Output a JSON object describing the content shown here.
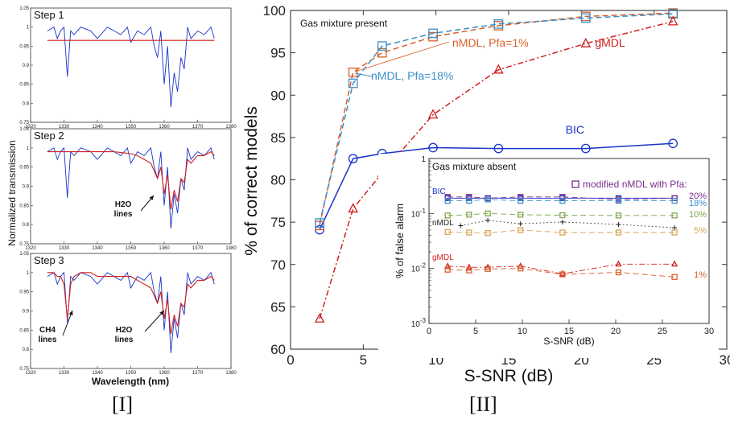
{
  "captions": {
    "left": "[I]",
    "right": "[II]"
  },
  "colors": {
    "blue": "#1a33c9",
    "red": "#d11f1f",
    "orange": "#d9602c",
    "teal": "#3a8fc7",
    "green": "#7fa84a",
    "tan": "#d9a35a",
    "purple": "#7a2d8f",
    "black": "#222222"
  },
  "chart_data": [
    {
      "type": "line",
      "panel": "[I]",
      "ylabel": "Normalized transmission",
      "xlabel": "Wavelength (nm)",
      "subplots": [
        {
          "title": "Step 1",
          "xlim": [
            1320,
            1380
          ],
          "ylim": [
            0.75,
            1.05
          ],
          "xticks": [
            "1320",
            "1330",
            "1340",
            "1350",
            "1360",
            "1370",
            "1380"
          ],
          "yticks": [
            "0.75",
            "0.8",
            "0.85",
            "0.9",
            "0.95",
            "1",
            "1.05"
          ],
          "annotations": [],
          "series": [
            {
              "color": "blue",
              "x": [
                1325,
                1327,
                1328,
                1329,
                1330,
                1331,
                1332,
                1333,
                1335,
                1338,
                1340,
                1343,
                1345,
                1347,
                1349,
                1350,
                1352,
                1354,
                1356,
                1357,
                1358,
                1359,
                1360,
                1361,
                1362,
                1363,
                1364,
                1365,
                1366,
                1367,
                1368,
                1370,
                1372,
                1374,
                1375
              ],
              "y": [
                0.99,
                1.0,
                0.97,
                0.99,
                1.0,
                0.87,
                0.99,
                0.98,
                1.0,
                0.99,
                0.97,
                1.0,
                0.99,
                0.98,
                1.0,
                0.96,
                0.99,
                0.98,
                1.0,
                0.95,
                0.92,
                0.99,
                0.85,
                0.95,
                0.79,
                0.88,
                0.83,
                0.92,
                0.89,
                1.0,
                0.97,
                0.99,
                0.98,
                1.0,
                0.97
              ]
            },
            {
              "color": "red",
              "x": [
                1325,
                1375
              ],
              "y": [
                0.965,
                0.965
              ]
            }
          ]
        },
        {
          "title": "Step 2",
          "xlim": [
            1320,
            1380
          ],
          "ylim": [
            0.75,
            1.05
          ],
          "xticks": [
            "1320",
            "1330",
            "1340",
            "1350",
            "1360",
            "1370",
            "1380"
          ],
          "yticks": [
            "0.75",
            "0.8",
            "0.85",
            "0.9",
            "0.95",
            "1",
            "1.05"
          ],
          "annotations": [
            {
              "text": "H2O\nlines"
            }
          ],
          "series": [
            {
              "color": "blue",
              "x": [
                1325,
                1327,
                1328,
                1329,
                1330,
                1331,
                1332,
                1333,
                1335,
                1338,
                1340,
                1343,
                1345,
                1347,
                1349,
                1350,
                1352,
                1354,
                1356,
                1357,
                1358,
                1359,
                1360,
                1361,
                1362,
                1363,
                1364,
                1365,
                1366,
                1367,
                1368,
                1370,
                1372,
                1374,
                1375
              ],
              "y": [
                0.99,
                1.0,
                0.97,
                0.99,
                1.0,
                0.87,
                0.99,
                0.98,
                1.0,
                0.99,
                0.97,
                1.0,
                0.99,
                0.98,
                1.0,
                0.96,
                0.99,
                0.98,
                1.0,
                0.95,
                0.92,
                0.99,
                0.85,
                0.95,
                0.79,
                0.88,
                0.83,
                0.92,
                0.89,
                1.0,
                0.97,
                0.99,
                0.98,
                1.0,
                0.97
              ]
            },
            {
              "color": "red",
              "x": [
                1325,
                1330,
                1335,
                1340,
                1345,
                1350,
                1352,
                1354,
                1356,
                1357,
                1358,
                1359,
                1360,
                1361,
                1362,
                1363,
                1364,
                1365,
                1366,
                1367,
                1368,
                1370,
                1372,
                1374,
                1375
              ],
              "y": [
                0.99,
                0.99,
                0.99,
                0.99,
                0.99,
                0.985,
                0.98,
                0.97,
                0.96,
                0.94,
                0.92,
                0.95,
                0.88,
                0.93,
                0.84,
                0.89,
                0.86,
                0.92,
                0.91,
                0.97,
                0.96,
                0.98,
                0.98,
                0.99,
                0.98
              ]
            }
          ]
        },
        {
          "title": "Step 3",
          "xlim": [
            1320,
            1380
          ],
          "ylim": [
            0.75,
            1.05
          ],
          "xticks": [
            "1320",
            "1330",
            "1340",
            "1350",
            "1360",
            "1370",
            "1380"
          ],
          "yticks": [
            "0.75",
            "0.8",
            "0.85",
            "0.9",
            "0.95",
            "1",
            "1.05"
          ],
          "annotations": [
            {
              "text": "CH4\nlines"
            },
            {
              "text": "H2O\nlines"
            }
          ],
          "series": [
            {
              "color": "blue",
              "x": [
                1325,
                1327,
                1328,
                1329,
                1330,
                1331,
                1332,
                1333,
                1335,
                1338,
                1340,
                1343,
                1345,
                1347,
                1349,
                1350,
                1352,
                1354,
                1356,
                1357,
                1358,
                1359,
                1360,
                1361,
                1362,
                1363,
                1364,
                1365,
                1366,
                1367,
                1368,
                1370,
                1372,
                1374,
                1375
              ],
              "y": [
                0.99,
                1.0,
                0.97,
                0.99,
                1.0,
                0.87,
                0.99,
                0.98,
                1.0,
                0.99,
                0.97,
                1.0,
                0.99,
                0.98,
                1.0,
                0.96,
                0.99,
                0.98,
                1.0,
                0.95,
                0.92,
                0.99,
                0.85,
                0.95,
                0.79,
                0.88,
                0.83,
                0.92,
                0.89,
                1.0,
                0.97,
                0.99,
                0.98,
                1.0,
                0.97
              ]
            },
            {
              "color": "red",
              "x": [
                1325,
                1327,
                1328,
                1329,
                1330,
                1331,
                1332,
                1333,
                1335,
                1338,
                1340,
                1345,
                1350,
                1352,
                1354,
                1356,
                1357,
                1358,
                1359,
                1360,
                1361,
                1362,
                1363,
                1364,
                1365,
                1366,
                1367,
                1368,
                1370,
                1372,
                1374,
                1375
              ],
              "y": [
                1.0,
                1.0,
                0.99,
                0.99,
                0.97,
                0.88,
                0.97,
                0.99,
                1.0,
                1.0,
                0.99,
                0.99,
                0.99,
                0.98,
                0.97,
                0.96,
                0.94,
                0.92,
                0.95,
                0.88,
                0.93,
                0.84,
                0.89,
                0.86,
                0.92,
                0.91,
                0.97,
                0.96,
                0.98,
                0.98,
                0.99,
                0.98
              ]
            }
          ]
        }
      ]
    },
    {
      "type": "line",
      "panel": "[II]",
      "title": "Gas mixture present",
      "xlabel": "S-SNR (dB)",
      "ylabel": "% of correct models",
      "xlim": [
        0,
        30
      ],
      "ylim": [
        60,
        100
      ],
      "xticks": [
        "0",
        "5",
        "10",
        "15",
        "20",
        "25",
        "30"
      ],
      "yticks": [
        "60",
        "65",
        "70",
        "75",
        "80",
        "85",
        "90",
        "95",
        "100"
      ],
      "series": [
        {
          "name": "BIC",
          "color": "blue",
          "marker": "circle",
          "dash": "solid",
          "x": [
            2,
            4.3,
            6.3,
            9.8,
            14.3,
            20.3,
            26.3
          ],
          "y": [
            74.1,
            82.5,
            83.1,
            83.8,
            83.7,
            83.7,
            84.3
          ]
        },
        {
          "name": "nMDL, Pfa=1%",
          "color": "orange",
          "marker": "square",
          "dash": "dash",
          "x": [
            2,
            4.3,
            6.3,
            9.8,
            14.3,
            20.3,
            26.3
          ],
          "y": [
            74.6,
            92.7,
            95.0,
            96.9,
            98.2,
            99.3,
            99.7
          ]
        },
        {
          "name": "nMDL, Pfa=18%",
          "color": "teal",
          "marker": "square",
          "dash": "dash",
          "x": [
            2,
            4.3,
            6.3,
            9.8,
            14.3,
            20.3,
            26.3
          ],
          "y": [
            74.9,
            91.4,
            95.8,
            97.3,
            98.4,
            99.1,
            99.6
          ]
        },
        {
          "name": "gMDL",
          "color": "red",
          "marker": "triangle",
          "dash": "dashdot",
          "x": [
            2,
            4.3,
            6.3,
            9.8,
            14.3,
            20.3,
            26.3
          ],
          "y": [
            63.6,
            76.6,
            80.8,
            87.7,
            93.0,
            96.1,
            98.7
          ]
        }
      ],
      "inset": {
        "title": "Gas mixture absent",
        "xlabel": "S-SNR (dB)",
        "ylabel": "% of false alarm",
        "xlim": [
          0,
          30
        ],
        "ylim": [
          0.001,
          1
        ],
        "yscale": "log",
        "xticks": [
          "0",
          "5",
          "10",
          "15",
          "20",
          "25",
          "30"
        ],
        "yticks": [
          "10^-3",
          "10^-2",
          "10^-1",
          "1"
        ],
        "legend_title": "modified nMDL with Pfa:",
        "series": [
          {
            "name": "BIC",
            "color": "blue",
            "marker": "square",
            "dash": "solid",
            "x": [
              2,
              4.3,
              6.3,
              9.8,
              14.3,
              20.3,
              26.3
            ],
            "y": [
              0.19,
              0.19,
              0.19,
              0.19,
              0.19,
              0.19,
              0.19
            ]
          },
          {
            "name": "20%",
            "color": "purple",
            "marker": "square",
            "dash": "dash",
            "x": [
              2,
              4.3,
              6.3,
              9.8,
              14.3,
              20.3,
              26.3
            ],
            "y": [
              0.2,
              0.2,
              0.19,
              0.2,
              0.2,
              0.18,
              0.19
            ]
          },
          {
            "name": "18%",
            "color": "teal",
            "marker": "square",
            "dash": "dash",
            "x": [
              2,
              4.3,
              6.3,
              9.8,
              14.3,
              20.3,
              26.3
            ],
            "y": [
              0.17,
              0.17,
              0.18,
              0.17,
              0.17,
              0.17,
              0.17
            ]
          },
          {
            "name": "nMDL",
            "color": "black",
            "marker": "plus",
            "dash": "dot",
            "x": [
              3.4,
              6.3,
              9.8,
              14.3,
              20.3,
              26.3
            ],
            "y": [
              0.06,
              0.075,
              0.065,
              0.07,
              0.063,
              0.055
            ]
          },
          {
            "name": "10%",
            "color": "green",
            "marker": "square",
            "dash": "dash",
            "x": [
              2,
              4.3,
              6.3,
              9.8,
              14.3,
              20.3,
              26.3
            ],
            "y": [
              0.092,
              0.095,
              0.1,
              0.095,
              0.093,
              0.092,
              0.092
            ]
          },
          {
            "name": "5%",
            "color": "tan",
            "marker": "square",
            "dash": "dash",
            "x": [
              2,
              4.3,
              6.3,
              9.8,
              14.3,
              20.3,
              26.3
            ],
            "y": [
              0.046,
              0.045,
              0.044,
              0.05,
              0.045,
              0.045,
              0.045
            ]
          },
          {
            "name": "gMDL",
            "color": "red",
            "marker": "triangle",
            "dash": "dashdot",
            "x": [
              2,
              4.3,
              6.3,
              9.8,
              14.3,
              20.3,
              26.3
            ],
            "y": [
              0.011,
              0.0105,
              0.0105,
              0.011,
              0.008,
              0.012,
              0.012
            ]
          },
          {
            "name": "1%",
            "color": "orange",
            "marker": "square",
            "dash": "dash",
            "x": [
              2,
              4.3,
              6.3,
              9.8,
              14.3,
              20.3,
              26.3
            ],
            "y": [
              0.0095,
              0.0092,
              0.0098,
              0.01,
              0.0078,
              0.0085,
              0.007
            ]
          }
        ]
      }
    }
  ]
}
